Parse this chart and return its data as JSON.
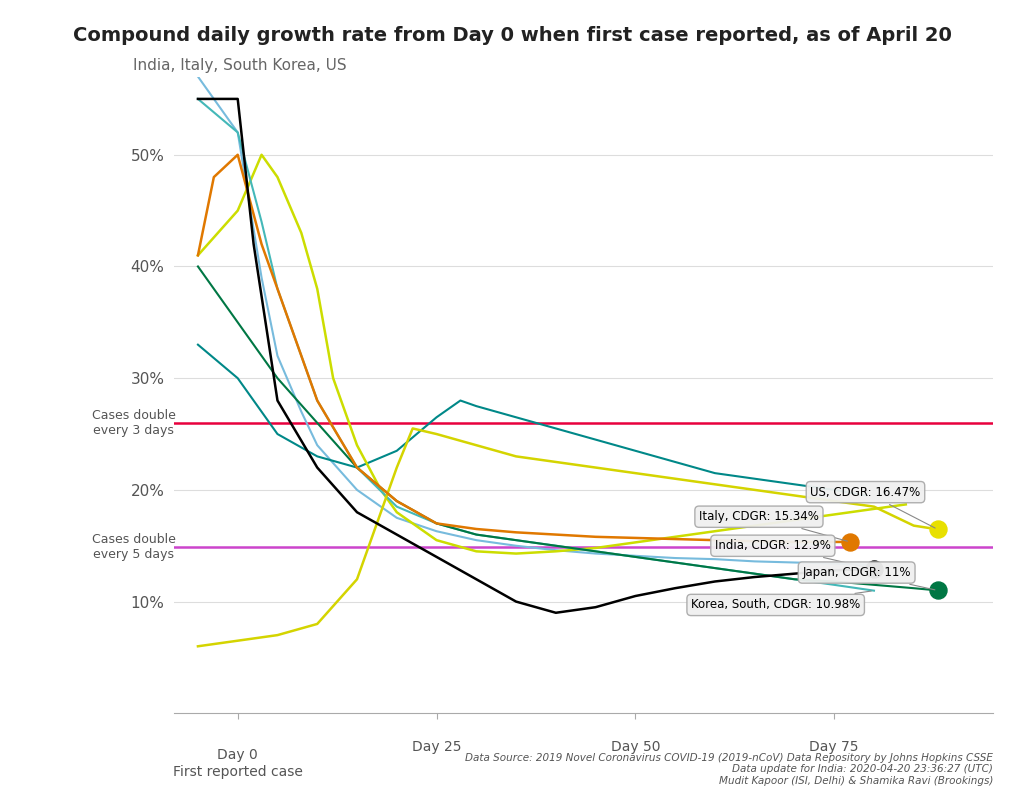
{
  "title": "Compound daily growth rate from Day 0 when first case reported, as of April 20",
  "subtitle": "India, Italy, South Korea, US",
  "xlabel_day0": "Day 0\nFirst reported case",
  "xlabel_day25": "Day 25",
  "xlabel_day50": "Day 50",
  "xlabel_day75": "Day 75",
  "ylim": [
    0,
    0.57
  ],
  "xlim": [
    -8,
    95
  ],
  "ref_line_3days": 0.26,
  "ref_line_5days": 0.1487,
  "ref_line_3days_color": "#e8003d",
  "ref_line_5days_color": "#cc44cc",
  "ref_label_3days": "Cases double\nevery 3 days",
  "ref_label_5days": "Cases double\nevery 5 days",
  "yticks": [
    0.1,
    0.2,
    0.3,
    0.4,
    0.5
  ],
  "ytick_labels": [
    "10%",
    "20%",
    "30%",
    "40%",
    "50%"
  ],
  "source_text": "Data Source: 2019 Novel Coronavirus COVID-19 (2019-nCoV) Data Repository by Johns Hopkins CSSE\nData update for India: 2020-04-20 23:36:27 (UTC)\nMudit Kapoor (ISI, Delhi) & Shamika Ravi (Brookings)",
  "background_color": "#ffffff",
  "grid_color": "#dddddd",
  "india_color": "#000000",
  "italy_color": "#e07800",
  "us_color": "#d4d400",
  "japan_color": "#007744",
  "korea_color": "#44b8b8",
  "teal_color": "#008888",
  "lightblue_color": "#77bbdd",
  "ygreen_color": "#ccdd00"
}
